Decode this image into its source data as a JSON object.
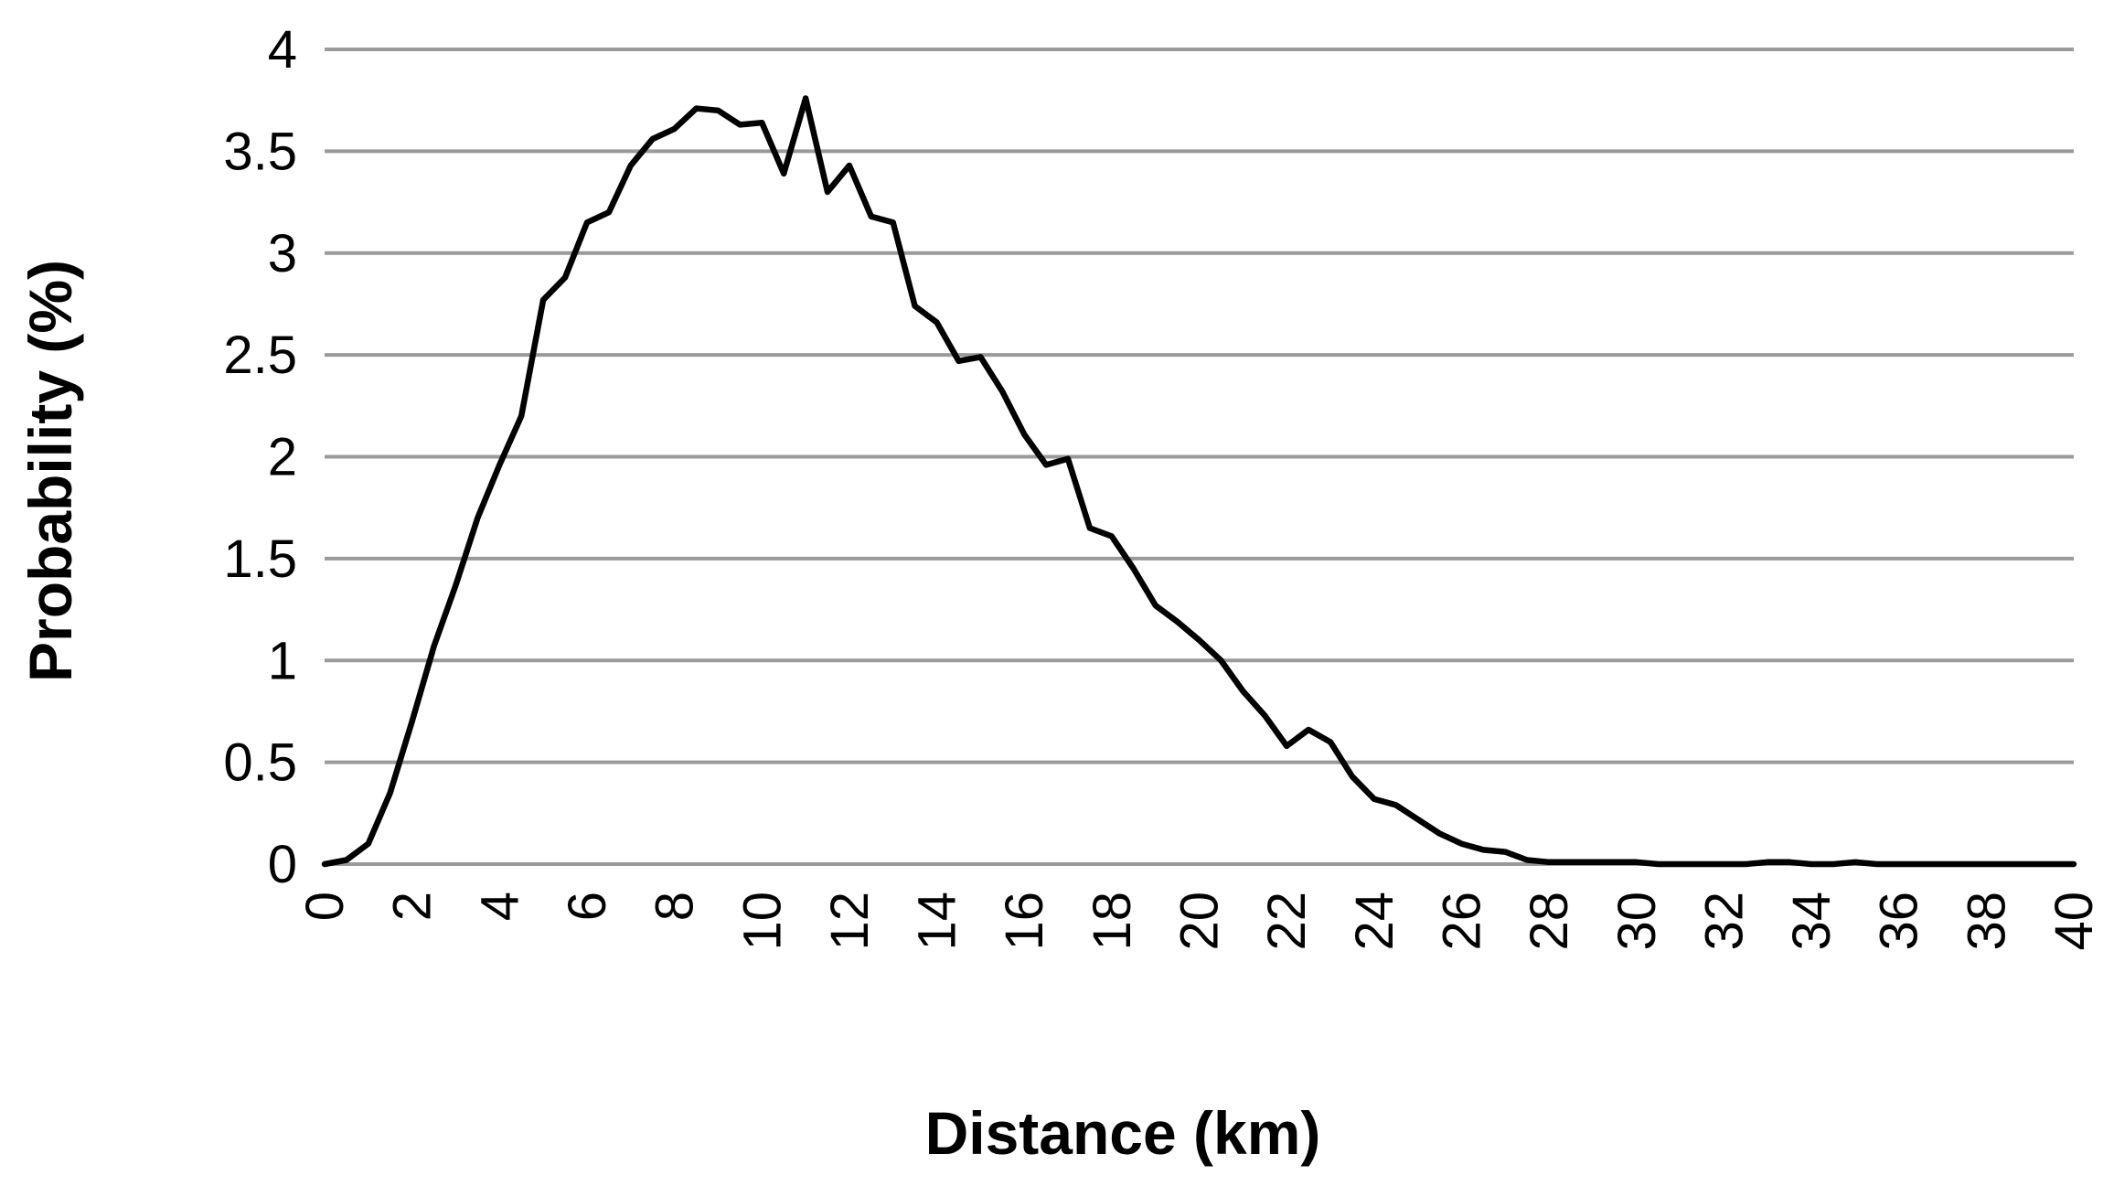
{
  "chart_data": {
    "type": "line",
    "xlabel": "Distance (km)",
    "ylabel": "Probability (%)",
    "xlim": [
      0,
      40
    ],
    "ylim": [
      0,
      4
    ],
    "x_ticks": [
      "0",
      "2",
      "4",
      "6",
      "8",
      "10",
      "12",
      "14",
      "16",
      "18",
      "20",
      "22",
      "24",
      "26",
      "28",
      "30",
      "32",
      "34",
      "36",
      "38",
      "40"
    ],
    "y_ticks": [
      "0",
      "0.5",
      "1",
      "1.5",
      "2",
      "2.5",
      "3",
      "3.5",
      "4"
    ],
    "grid": true,
    "legend": false,
    "line_color": "#000000",
    "grid_color": "#9a9a9a",
    "series": [
      {
        "x": [
          0,
          0.5,
          1,
          1.5,
          2,
          2.5,
          3,
          3.5,
          4,
          4.5,
          5,
          5.5,
          6,
          6.5,
          7,
          7.5,
          8,
          8.5,
          9,
          9.5,
          10,
          10.5,
          11,
          11.5,
          12,
          12.5,
          13,
          13.5,
          14,
          14.5,
          15,
          15.5,
          16,
          16.5,
          17,
          17.5,
          18,
          18.5,
          19,
          19.5,
          20,
          20.5,
          21,
          21.5,
          22,
          22.5,
          23,
          23.5,
          24,
          24.5,
          25,
          25.5,
          26,
          26.5,
          27,
          27.5,
          28,
          28.5,
          29,
          29.5,
          30,
          30.5,
          31,
          31.5,
          32,
          32.5,
          33,
          33.5,
          34,
          34.5,
          35,
          35.5,
          36,
          36.5,
          37,
          37.5,
          38,
          38.5,
          39,
          39.5,
          40
        ],
        "y": [
          0,
          0.02,
          0.1,
          0.35,
          0.7,
          1.07,
          1.37,
          1.7,
          1.96,
          2.2,
          2.77,
          2.88,
          3.15,
          3.2,
          3.43,
          3.56,
          3.61,
          3.71,
          3.7,
          3.63,
          3.64,
          3.39,
          3.76,
          3.3,
          3.43,
          3.18,
          3.15,
          2.74,
          2.66,
          2.47,
          2.49,
          2.32,
          2.11,
          1.96,
          1.99,
          1.65,
          1.61,
          1.45,
          1.27,
          1.19,
          1.1,
          1.0,
          0.85,
          0.73,
          0.58,
          0.66,
          0.6,
          0.43,
          0.32,
          0.29,
          0.22,
          0.15,
          0.1,
          0.07,
          0.06,
          0.02,
          0.01,
          0.01,
          0.01,
          0.01,
          0.01,
          0,
          0,
          0,
          0,
          0,
          0.01,
          0.01,
          0,
          0,
          0.01,
          0,
          0,
          0,
          0,
          0,
          0,
          0,
          0,
          0,
          0
        ]
      }
    ]
  }
}
